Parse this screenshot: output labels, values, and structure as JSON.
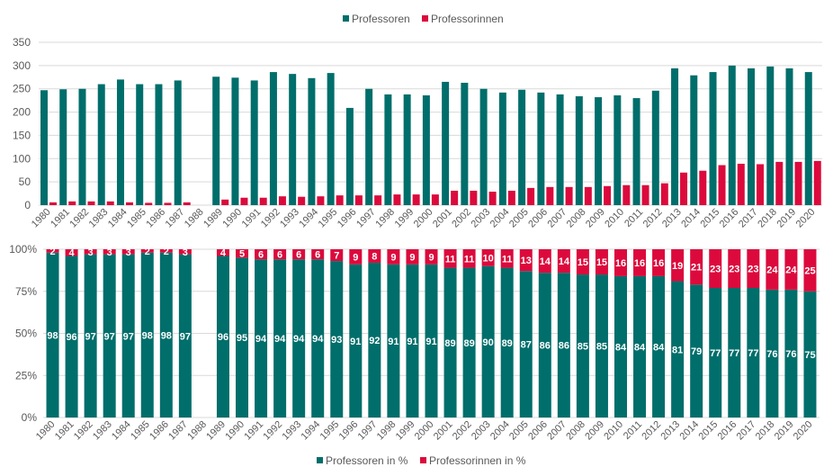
{
  "colors": {
    "men": "#006E6B",
    "women": "#DC0A3C",
    "grid": "#D9D9D9",
    "text": "#595959"
  },
  "chart_data": [
    {
      "type": "bar",
      "title": "",
      "xlabel": "",
      "ylabel": "",
      "ylim": [
        0,
        350
      ],
      "yticks": [
        "0",
        "50",
        "100",
        "150",
        "200",
        "250",
        "300",
        "350"
      ],
      "grid": true,
      "legend_position": "top",
      "categories": [
        "1980",
        "1981",
        "1982",
        "1983",
        "1984",
        "1985",
        "1986",
        "1987",
        "1988",
        "1989",
        "1990",
        "1991",
        "1992",
        "1993",
        "1994",
        "1995",
        "1996",
        "1997",
        "1998",
        "1999",
        "2000",
        "2001",
        "2002",
        "2003",
        "2004",
        "2005",
        "2006",
        "2007",
        "2008",
        "2009",
        "2010",
        "2011",
        "2012",
        "2013",
        "2014",
        "2015",
        "2016",
        "2017",
        "2018",
        "2019",
        "2020"
      ],
      "series": [
        {
          "name": "Professoren",
          "color": "#006E6B",
          "values": [
            247,
            249,
            250,
            260,
            270,
            260,
            260,
            268,
            null,
            276,
            274,
            268,
            286,
            282,
            273,
            284,
            209,
            250,
            238,
            238,
            236,
            265,
            263,
            250,
            242,
            248,
            242,
            238,
            234,
            232,
            236,
            230,
            246,
            294,
            279,
            286,
            300,
            294,
            298,
            294,
            286
          ]
        },
        {
          "name": "Professorinnen",
          "color": "#DC0A3C",
          "values": [
            6,
            8,
            8,
            8,
            6,
            5,
            5,
            6,
            null,
            12,
            16,
            16,
            19,
            18,
            19,
            21,
            21,
            21,
            23,
            23,
            23,
            31,
            31,
            29,
            31,
            37,
            39,
            39,
            39,
            41,
            43,
            43,
            47,
            70,
            74,
            86,
            89,
            88,
            93,
            93,
            95
          ]
        }
      ]
    },
    {
      "type": "bar",
      "stacked": true,
      "title": "",
      "xlabel": "",
      "ylabel": "",
      "ylim": [
        0,
        100
      ],
      "yticks": [
        "0%",
        "25%",
        "50%",
        "75%",
        "100%"
      ],
      "grid": true,
      "legend_position": "bottom",
      "categories": [
        "1980",
        "1981",
        "1982",
        "1983",
        "1984",
        "1985",
        "1986",
        "1987",
        "1988",
        "1989",
        "1990",
        "1991",
        "1992",
        "1993",
        "1994",
        "1995",
        "1996",
        "1997",
        "1998",
        "1999",
        "2000",
        "2001",
        "2002",
        "2003",
        "2004",
        "2005",
        "2006",
        "2007",
        "2008",
        "2009",
        "2010",
        "2011",
        "2012",
        "2013",
        "2014",
        "2015",
        "2016",
        "2017",
        "2018",
        "2019",
        "2020"
      ],
      "series": [
        {
          "name": "Professoren in %",
          "color": "#006E6B",
          "values": [
            98,
            96,
            97,
            97,
            97,
            98,
            98,
            97,
            null,
            96,
            95,
            94,
            94,
            94,
            94,
            93,
            91,
            92,
            91,
            91,
            91,
            89,
            89,
            90,
            89,
            87,
            86,
            86,
            85,
            85,
            84,
            84,
            84,
            81,
            79,
            77,
            77,
            77,
            76,
            76,
            75
          ]
        },
        {
          "name": "Professorinnen in %",
          "color": "#DC0A3C",
          "values": [
            2,
            4,
            3,
            3,
            3,
            2,
            2,
            3,
            null,
            4,
            5,
            6,
            6,
            6,
            6,
            7,
            9,
            8,
            9,
            9,
            9,
            11,
            11,
            10,
            11,
            13,
            14,
            14,
            15,
            15,
            16,
            16,
            16,
            19,
            21,
            23,
            23,
            23,
            24,
            24,
            25
          ]
        }
      ]
    }
  ]
}
